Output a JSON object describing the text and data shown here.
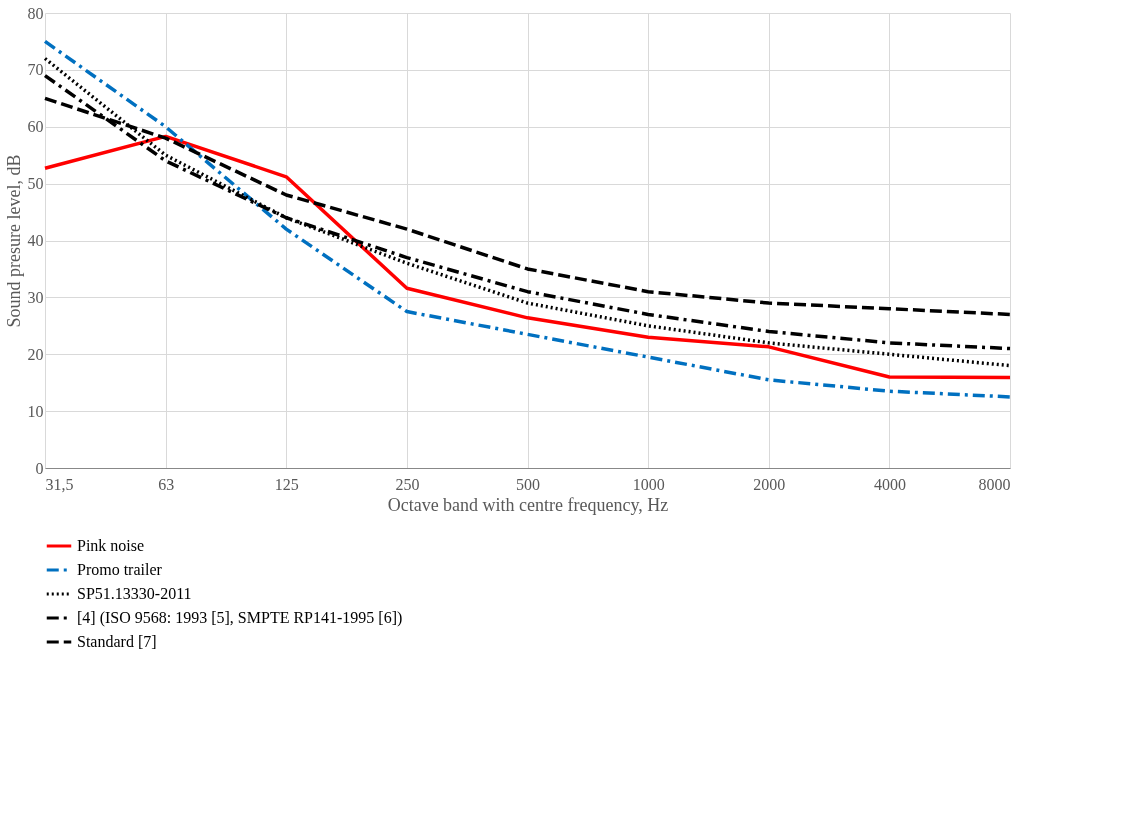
{
  "chart_data": {
    "type": "line",
    "xlabel": "Octave band with centre frequency, Hz",
    "ylabel": "Sound presure level, dB",
    "categories": [
      "31,5",
      "63",
      "125",
      "250",
      "500",
      "1000",
      "2000",
      "4000",
      "8000"
    ],
    "ylim": [
      0,
      80
    ],
    "yticks": [
      0,
      10,
      20,
      30,
      40,
      50,
      60,
      70,
      80
    ],
    "grid": true,
    "legend": "bottom",
    "marker": "none",
    "series": [
      {
        "name": "Pink noise",
        "color": "#ff0000",
        "line_style": "solid",
        "values": [
          52.7,
          58.3,
          51.2,
          31.6,
          26.4,
          23,
          21.3,
          16,
          15.9
        ]
      },
      {
        "name": "Promo trailer",
        "color": "#0070c0",
        "line_style": "dashdot",
        "values": [
          75,
          60,
          42,
          27.5,
          23.5,
          19.5,
          15.5,
          13.5,
          12.5
        ]
      },
      {
        "name": "SP51.13330-2011",
        "color": "#000000",
        "line_style": "dotted",
        "values": [
          72,
          55,
          44,
          36,
          29,
          25,
          22,
          20,
          18
        ]
      },
      {
        "name": "[4] (ISO 9568: 1993 [5], SMPTE RP141-1995 [6])",
        "color": "#000000",
        "line_style": "dashdot",
        "values": [
          69,
          54,
          44,
          37,
          31,
          27,
          24,
          22,
          21
        ]
      },
      {
        "name": "Standard [7]",
        "color": "#000000",
        "line_style": "dashed",
        "values": [
          65,
          58,
          48,
          42,
          35,
          31,
          29,
          28,
          27
        ]
      }
    ]
  }
}
